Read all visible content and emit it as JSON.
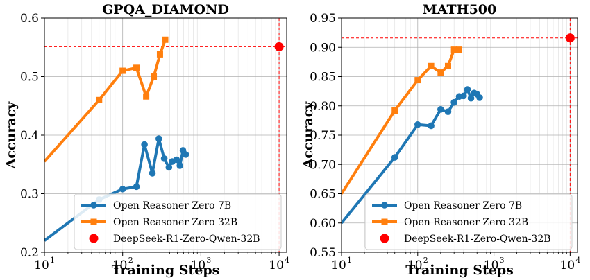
{
  "chart_data": [
    {
      "type": "line",
      "title": "GPQA_DIAMOND",
      "xlabel": "Training Steps",
      "ylabel": "Accuracy",
      "xscale": "log",
      "xlim": [
        10,
        12500
      ],
      "ylim": [
        0.2,
        0.6
      ],
      "yticks": [
        "0.2",
        "0.3",
        "0.4",
        "0.5",
        "0.6"
      ],
      "xticks": [
        {
          "base": "10",
          "exp": "1"
        },
        {
          "base": "10",
          "exp": "2"
        },
        {
          "base": "10",
          "exp": "3"
        },
        {
          "base": "10",
          "exp": "4"
        }
      ],
      "grid": true,
      "legend_position": "lower-right",
      "series": [
        {
          "name": "Open Reasoner Zero 7B",
          "color": "#1f77b4",
          "marker": "circle",
          "x": [
            10,
            50,
            100,
            150,
            190,
            240,
            290,
            340,
            390,
            430,
            490,
            540,
            590,
            640
          ],
          "y": [
            0.22,
            0.29,
            0.308,
            0.312,
            0.384,
            0.335,
            0.394,
            0.36,
            0.345,
            0.355,
            0.358,
            0.348,
            0.374,
            0.367
          ]
        },
        {
          "name": "Open Reasoner Zero 32B",
          "color": "#ff7f0e",
          "marker": "square",
          "x": [
            10,
            50,
            100,
            150,
            200,
            250,
            300,
            350
          ],
          "y": [
            0.355,
            0.46,
            0.51,
            0.515,
            0.466,
            0.5,
            0.538,
            0.563
          ]
        }
      ],
      "reference": {
        "name": "DeepSeek-R1-Zero-Qwen-32B",
        "color": "#ff0000",
        "x": 10000,
        "y": 0.551
      }
    },
    {
      "type": "line",
      "title": "MATH500",
      "xlabel": "Training Steps",
      "ylabel": "Accuracy",
      "xscale": "log",
      "xlim": [
        10,
        12500
      ],
      "ylim": [
        0.55,
        0.95
      ],
      "yticks": [
        "0.55",
        "0.60",
        "0.65",
        "0.70",
        "0.75",
        "0.80",
        "0.85",
        "0.90",
        "0.95"
      ],
      "xticks": [
        {
          "base": "10",
          "exp": "1"
        },
        {
          "base": "10",
          "exp": "2"
        },
        {
          "base": "10",
          "exp": "3"
        },
        {
          "base": "10",
          "exp": "4"
        }
      ],
      "grid": true,
      "legend_position": "lower-right",
      "series": [
        {
          "name": "Open Reasoner Zero 7B",
          "color": "#1f77b4",
          "marker": "circle",
          "x": [
            10,
            50,
            100,
            150,
            200,
            250,
            300,
            350,
            400,
            450,
            500,
            550,
            600,
            650
          ],
          "y": [
            0.6,
            0.712,
            0.768,
            0.766,
            0.794,
            0.79,
            0.806,
            0.816,
            0.817,
            0.828,
            0.813,
            0.822,
            0.82,
            0.814
          ]
        },
        {
          "name": "Open Reasoner Zero 32B",
          "color": "#ff7f0e",
          "marker": "square",
          "x": [
            10,
            50,
            100,
            150,
            200,
            250,
            300,
            350
          ],
          "y": [
            0.65,
            0.792,
            0.844,
            0.868,
            0.857,
            0.868,
            0.896,
            0.896
          ]
        }
      ],
      "reference": {
        "name": "DeepSeek-R1-Zero-Qwen-32B",
        "color": "#ff0000",
        "x": 10000,
        "y": 0.916
      }
    }
  ]
}
